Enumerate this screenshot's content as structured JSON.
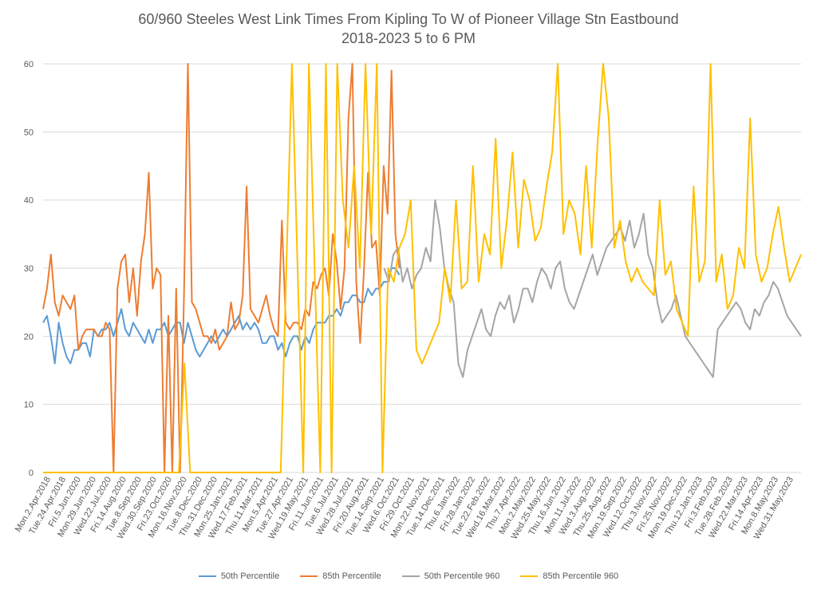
{
  "chart_data": {
    "type": "line",
    "title": "60/960 Steeles West Link Times From Kipling To W of Pioneer Village Stn Eastbound",
    "subtitle": "2018-2023 5 to 6 PM",
    "xlabel": "",
    "ylabel": "",
    "ylim": [
      0,
      60
    ],
    "yticks": [
      0,
      10,
      20,
      30,
      40,
      50,
      60
    ],
    "grid": true,
    "legend_position": "bottom",
    "x_tick_labels": [
      "Mon.2.Apr.2018",
      "Tue.24.Apr.2018",
      "Fri.5.Jun.2020",
      "Mon.29.Jun.2020",
      "Wed.22.Jul.2020",
      "Fri.14.Aug.2020",
      "Tue.8.Sep.2020",
      "Wed.30.Sep.2020",
      "Fri.23.Oct.2020",
      "Mon.16.Nov.2020",
      "Tue.8.Dec.2020",
      "Thu.31.Dec.2020",
      "Mon.25.Jan.2021",
      "Wed.17.Feb.2021",
      "Thu.11.Mar.2021",
      "Mon.5.Apr.2021",
      "Tue.27.Apr.2021",
      "Wed.19.May.2021",
      "Fri.11.Jun.2021",
      "Tue.6.Jul.2021",
      "Wed.28.Jul.2021",
      "Fri.20.Aug.2021",
      "Tue.14.Sep.2021",
      "Wed.6.Oct.2021",
      "Fri.29.Oct.2021",
      "Mon.22.Nov.2021",
      "Tue.14.Dec.2021",
      "Thu.6.Jan.2022",
      "Fri.28.Jan.2022",
      "Tue.22.Feb.2022",
      "Wed.16.Mar.2022",
      "Thu.7.Apr.2022",
      "Mon.2.May.2022",
      "Wed.25.May.2022",
      "Thu.16.Jun.2022",
      "Mon.11.Jul.2022",
      "Wed.3.Aug.2022",
      "Thu.25.Aug.2022",
      "Mon.19.Sep.2022",
      "Wed.12.Oct.2022",
      "Thu.3.Nov.2022",
      "Fri.25.Nov.2022",
      "Mon.19.Dec.2022",
      "Thu.12.Jan.2023",
      "Fri.3.Feb.2023",
      "Tue.28.Feb.2023",
      "Wed.22.Mar.2023",
      "Fri.14.Apr.2023",
      "Mon.8.May.2023",
      "Wed.31.May.2023"
    ],
    "series": [
      {
        "name": "50th Percentile",
        "color": "#5B9BD5",
        "values": [
          22,
          23,
          20,
          16,
          22,
          19,
          17,
          16,
          18,
          18,
          19,
          19,
          17,
          21,
          20,
          21,
          21,
          22,
          20,
          22,
          24,
          21,
          20,
          22,
          21,
          20,
          19,
          21,
          19,
          21,
          21,
          22,
          20,
          21,
          22,
          22,
          19,
          22,
          20,
          18,
          17,
          18,
          19,
          20,
          19,
          20,
          21,
          20,
          21,
          22,
          23,
          21,
          22,
          21,
          22,
          21,
          19,
          19,
          20,
          20,
          18,
          19,
          17,
          19,
          20,
          20,
          18,
          20,
          19,
          21,
          22,
          22,
          22,
          23,
          23,
          24,
          23,
          25,
          25,
          26,
          26,
          25,
          25,
          27,
          26,
          27,
          27,
          28,
          28,
          30,
          30,
          29
        ]
      },
      {
        "name": "85th Percentile",
        "color": "#ED7D31",
        "values": [
          24,
          27,
          32,
          25,
          23,
          26,
          25,
          24,
          26,
          18,
          20,
          21,
          21,
          21,
          20,
          20,
          22,
          21,
          0,
          27,
          31,
          32,
          25,
          30,
          23,
          31,
          35,
          44,
          27,
          30,
          29,
          0,
          23,
          0,
          27,
          0,
          26,
          60,
          25,
          24,
          22,
          20,
          20,
          19,
          21,
          18,
          19,
          20,
          25,
          21,
          22,
          26,
          42,
          24,
          23,
          22,
          24,
          26,
          23,
          21,
          20,
          37,
          22,
          21,
          22,
          22,
          21,
          24,
          23,
          28,
          27,
          29,
          30,
          26,
          35,
          31,
          24,
          30,
          52,
          60,
          28,
          19,
          30,
          44,
          33,
          34,
          26,
          45,
          38,
          59,
          35,
          30
        ]
      },
      {
        "name": "50th Percentile 960",
        "color": "#A5A5A5",
        "values": [
          30,
          28,
          32,
          33,
          28,
          30,
          27,
          29,
          30,
          33,
          31,
          40,
          36,
          30,
          27,
          25,
          16,
          14,
          18,
          20,
          22,
          24,
          21,
          20,
          23,
          25,
          24,
          26,
          22,
          24,
          27,
          27,
          25,
          28,
          30,
          29,
          27,
          30,
          31,
          27,
          25,
          24,
          26,
          28,
          30,
          32,
          29,
          31,
          33,
          34,
          35,
          36,
          34,
          37,
          33,
          35,
          38,
          32,
          30,
          25,
          22,
          23,
          24,
          26,
          23,
          20,
          19,
          18,
          17,
          16,
          15,
          14,
          21,
          22,
          23,
          24,
          25,
          24,
          22,
          21,
          24,
          23,
          25,
          26,
          28,
          27,
          25,
          23,
          22,
          21,
          20
        ]
      },
      {
        "name": "85th Percentile 960",
        "color": "#FFC000",
        "values": [
          0,
          0,
          0,
          0,
          0,
          0,
          0,
          0,
          0,
          0,
          0,
          0,
          0,
          0,
          0,
          0,
          0,
          0,
          0,
          0,
          0,
          0,
          0,
          0,
          0,
          16,
          0,
          0,
          0,
          0,
          0,
          0,
          0,
          0,
          0,
          0,
          0,
          0,
          0,
          0,
          0,
          0,
          0,
          30,
          60,
          30,
          0,
          60,
          30,
          0,
          60,
          0,
          60,
          40,
          33,
          45,
          30,
          60,
          35,
          60,
          0,
          30,
          28,
          33,
          35,
          40,
          18,
          16,
          18,
          20,
          22,
          30,
          25,
          40,
          27,
          28,
          45,
          28,
          35,
          32,
          49,
          30,
          37,
          47,
          33,
          43,
          40,
          34,
          36,
          42,
          47,
          60,
          35,
          40,
          38,
          32,
          45,
          33,
          48,
          60,
          52,
          33,
          37,
          31,
          28,
          30,
          28,
          27,
          26,
          40,
          29,
          31,
          24,
          22,
          20,
          42,
          28,
          31,
          60,
          28,
          32,
          24,
          26,
          33,
          30,
          52,
          32,
          28,
          30,
          35,
          39,
          33,
          28,
          30,
          32
        ]
      }
    ]
  }
}
